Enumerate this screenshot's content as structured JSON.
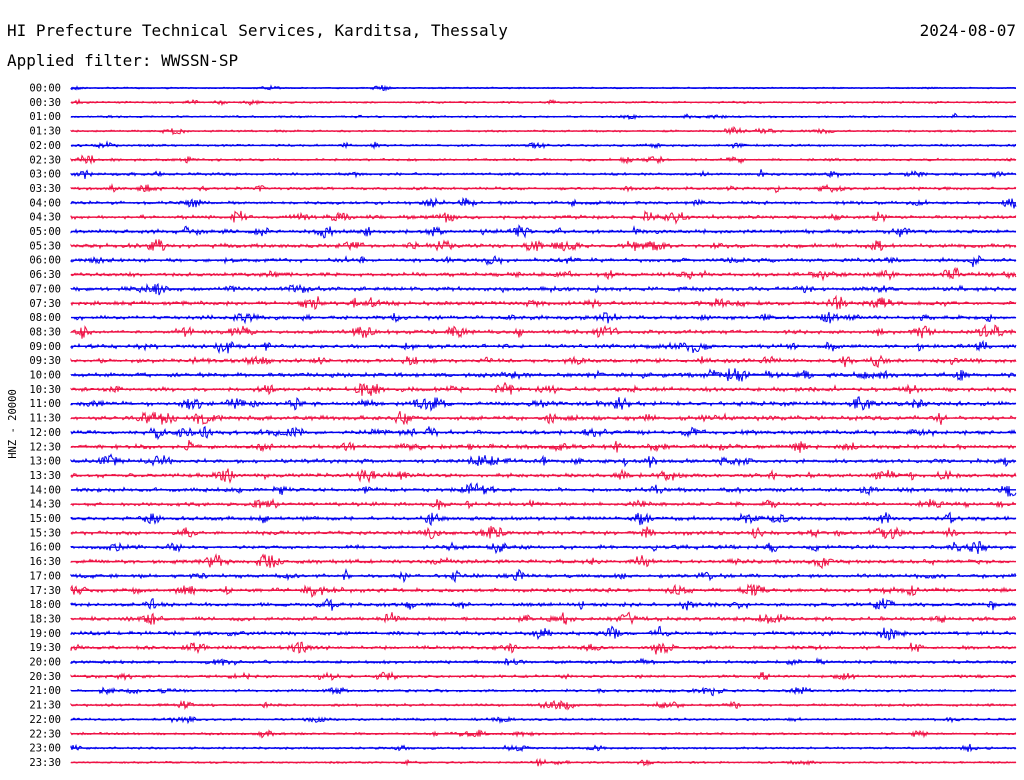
{
  "header": {
    "station": "HI Prefecture Technical Services, Karditsa, Thessaly",
    "date": "2024-08-07",
    "filter": "Applied filter: WWSSN-SP"
  },
  "chart_data": {
    "type": "line",
    "ylabel": "HNZ - 20000",
    "rows": [
      "00:00",
      "00:30",
      "01:00",
      "01:30",
      "02:00",
      "02:30",
      "03:00",
      "03:30",
      "04:00",
      "04:30",
      "05:00",
      "05:30",
      "06:00",
      "06:30",
      "07:00",
      "07:30",
      "08:00",
      "08:30",
      "09:00",
      "09:30",
      "10:00",
      "10:30",
      "11:00",
      "11:30",
      "12:00",
      "12:30",
      "13:00",
      "13:30",
      "14:00",
      "14:30",
      "15:00",
      "15:30",
      "16:00",
      "16:30",
      "17:00",
      "17:30",
      "18:00",
      "18:30",
      "19:00",
      "19:30",
      "20:00",
      "20:30",
      "21:00",
      "21:30",
      "22:00",
      "22:30",
      "23:00",
      "23:30"
    ],
    "activity": [
      0.15,
      0.25,
      0.3,
      0.3,
      0.35,
      0.45,
      0.5,
      0.55,
      0.65,
      0.75,
      0.8,
      0.85,
      0.8,
      0.8,
      0.85,
      0.85,
      0.8,
      0.85,
      0.85,
      0.85,
      0.9,
      0.9,
      0.95,
      0.9,
      0.9,
      0.85,
      0.85,
      0.85,
      0.8,
      0.75,
      0.8,
      0.8,
      0.8,
      0.8,
      0.8,
      0.8,
      0.8,
      0.8,
      0.8,
      0.7,
      0.6,
      0.55,
      0.5,
      0.45,
      0.4,
      0.4,
      0.35,
      0.3
    ],
    "colors": {
      "even": "#0000ee",
      "odd": "#ee1144"
    },
    "grid": false
  }
}
